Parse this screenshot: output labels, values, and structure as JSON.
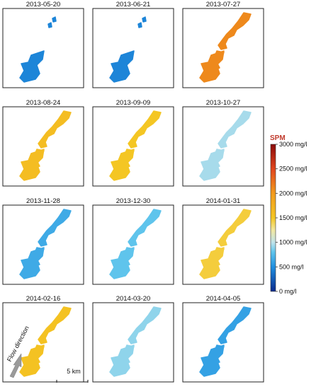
{
  "panels": [
    {
      "date": "2013-05-20",
      "level_mgl": 450,
      "coverage": "lower"
    },
    {
      "date": "2013-06-21",
      "level_mgl": 450,
      "coverage": "lower"
    },
    {
      "date": "2013-07-27",
      "level_mgl": 2100,
      "coverage": "full"
    },
    {
      "date": "2013-08-24",
      "level_mgl": 1600,
      "coverage": "full"
    },
    {
      "date": "2013-09-09",
      "level_mgl": 1500,
      "coverage": "full"
    },
    {
      "date": "2013-10-27",
      "level_mgl": 950,
      "coverage": "full"
    },
    {
      "date": "2013-11-28",
      "level_mgl": 650,
      "coverage": "full"
    },
    {
      "date": "2013-12-30",
      "level_mgl": 800,
      "coverage": "full"
    },
    {
      "date": "2014-01-31",
      "level_mgl": 1450,
      "coverage": "full"
    },
    {
      "date": "2014-02-16",
      "level_mgl": 1550,
      "coverage": "full"
    },
    {
      "date": "2014-03-20",
      "level_mgl": 900,
      "coverage": "full"
    },
    {
      "date": "2014-04-05",
      "level_mgl": 600,
      "coverage": "full"
    }
  ],
  "legend": {
    "title": "SPM",
    "min": 0,
    "max": 3000,
    "ticks": [
      {
        "value": 0,
        "label": "0 mg/l"
      },
      {
        "value": 500,
        "label": "500 mg/l"
      },
      {
        "value": 1000,
        "label": "1000 mg/l"
      },
      {
        "value": 1500,
        "label": "1500 mg/l"
      },
      {
        "value": 2000,
        "label": "2000 mg/l"
      },
      {
        "value": 2500,
        "label": "2500 mg/l"
      },
      {
        "value": 3000,
        "label": "3000 mg/l"
      }
    ],
    "colors": [
      {
        "value": 0,
        "color": "#0a2a8c"
      },
      {
        "value": 500,
        "color": "#1f8fe0"
      },
      {
        "value": 800,
        "color": "#5fc4ec"
      },
      {
        "value": 1000,
        "color": "#bfe3ea"
      },
      {
        "value": 1250,
        "color": "#f2e8a0"
      },
      {
        "value": 1500,
        "color": "#f4c623"
      },
      {
        "value": 2000,
        "color": "#f29a1c"
      },
      {
        "value": 2500,
        "color": "#e0451d"
      },
      {
        "value": 3000,
        "color": "#8b0a0a"
      }
    ]
  },
  "annotations": {
    "flow_direction": "Flow direction",
    "scale_bar": "5 km"
  }
}
